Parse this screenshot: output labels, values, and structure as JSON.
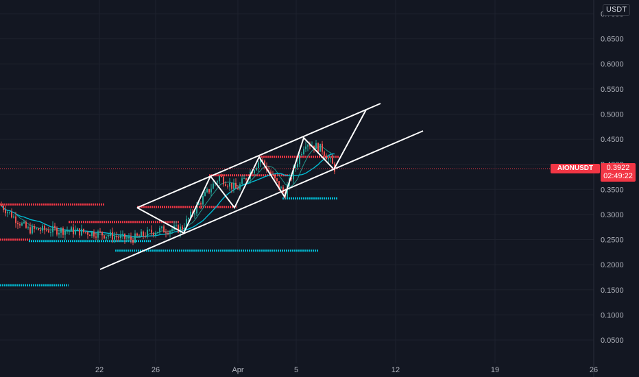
{
  "symbol": "AIONUSDT",
  "currency": "USDT",
  "last_price": "0.3922",
  "countdown": "02:49:22",
  "colors": {
    "background": "#131722",
    "grid": "#1e222d",
    "up_candle": "#26a69a",
    "down_candle": "#ef5350",
    "price_line": "#f23645",
    "ma_fast": "#26a69a",
    "ma_slow": "#00bcd4",
    "trendlines": "#ffffff",
    "resistance": "#f23645",
    "support": "#00bcd4"
  },
  "chart_data": {
    "type": "candlestick",
    "ylim": [
      0.0,
      0.7
    ],
    "y_ticks": [
      "0.0500",
      "0.1000",
      "0.1500",
      "0.2000",
      "0.2500",
      "0.3000",
      "0.3500",
      "0.4000",
      "0.4500",
      "0.5000",
      "0.5500",
      "0.6000",
      "0.6500",
      "0.7000"
    ],
    "x_ticks": [
      "22",
      "26",
      "Apr",
      "5",
      "12",
      "19",
      "26"
    ],
    "grid": true,
    "price_scale": "right"
  }
}
